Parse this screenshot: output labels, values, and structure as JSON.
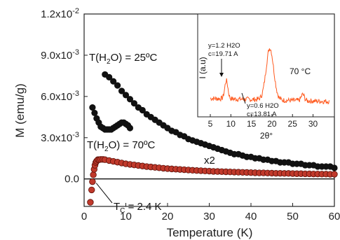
{
  "chart_data": [
    {
      "type": "scatter",
      "xlabel": "Temperature (K)",
      "ylabel": "M (emu/g)",
      "xlim": [
        0,
        60
      ],
      "ylim": [
        -0.002,
        0.012
      ],
      "xticks": [
        "0",
        "10",
        "20",
        "30",
        "40",
        "50",
        "60"
      ],
      "yticks": [
        "0.0",
        "3.0x10-3",
        "6.0x10-3",
        "9.0x10-3",
        "1.2x10-2"
      ],
      "ytick_values": [
        0,
        0.003,
        0.006,
        0.009,
        0.012
      ],
      "xtick_values": [
        0,
        10,
        20,
        30,
        40,
        50,
        60
      ],
      "series": [
        {
          "color": "#111111",
          "marker": "filled-circle",
          "x": [
            5,
            6,
            7,
            8,
            9,
            10,
            11,
            12,
            13,
            14,
            15,
            16,
            17,
            18,
            19,
            20,
            21,
            22,
            23,
            24,
            25,
            26,
            27,
            28,
            29,
            30,
            31,
            32,
            33,
            34,
            35,
            36,
            37,
            38,
            39,
            40,
            41,
            42,
            43,
            44,
            45,
            46,
            47,
            48,
            49,
            50,
            51,
            52,
            53,
            54,
            55,
            56,
            57,
            58,
            59,
            60
          ],
          "y": [
            0.0076,
            0.0074,
            0.0071,
            0.0068,
            0.0064,
            0.0061,
            0.0058,
            0.0055,
            0.0052,
            0.005,
            0.0047,
            0.0045,
            0.0043,
            0.0041,
            0.0039,
            0.0037,
            0.0035,
            0.0034,
            0.0032,
            0.0031,
            0.0029,
            0.0028,
            0.0027,
            0.0026,
            0.0025,
            0.0024,
            0.0023,
            0.0022,
            0.0021,
            0.002,
            0.0019,
            0.0018,
            0.0018,
            0.0017,
            0.0016,
            0.0016,
            0.0015,
            0.0015,
            0.0014,
            0.0014,
            0.0013,
            0.0013,
            0.0012,
            0.0012,
            0.0012,
            0.0011,
            0.0011,
            0.0011,
            0.001,
            0.001,
            0.001,
            0.0009,
            0.0009,
            0.0009,
            0.0009,
            0.0008
          ]
        },
        {
          "color": "#111111",
          "marker": "filled-circle",
          "x": [
            2,
            2.5,
            3,
            3.5,
            4,
            4.5,
            5,
            5.5,
            6,
            6.5,
            7,
            7.5,
            8,
            8.5,
            9,
            9.5,
            10,
            10.5,
            11
          ],
          "y": [
            0.0052,
            0.0048,
            0.0044,
            0.0041,
            0.0038,
            0.0037,
            0.0036,
            0.0036,
            0.0036,
            0.0036,
            0.0037,
            0.0038,
            0.0039,
            0.004,
            0.0041,
            0.0041,
            0.004,
            0.0039,
            0.0037
          ]
        },
        {
          "color": "#c0392b",
          "marker": "filled-circle",
          "x": [
            1.5,
            1.8,
            2,
            2.2,
            2.4,
            2.6,
            2.8,
            3,
            3.3,
            3.6,
            4,
            4.5,
            5,
            6,
            7,
            8,
            9,
            10,
            11,
            12,
            13,
            14,
            15,
            16,
            17,
            18,
            19,
            20,
            21,
            22,
            23,
            24,
            25,
            26,
            27,
            28,
            29,
            30,
            31,
            32,
            33,
            34,
            35,
            36,
            37,
            38,
            39,
            40,
            41,
            42,
            43,
            44,
            45,
            46,
            47,
            48,
            49,
            50,
            51,
            52,
            53,
            54,
            55,
            56,
            57,
            58,
            59,
            60
          ],
          "y": [
            -0.0017,
            -0.0008,
            -0.0002,
            0.0003,
            0.0007,
            0.001,
            0.0012,
            0.0013,
            0.0014,
            0.0014,
            0.00142,
            0.00142,
            0.0014,
            0.00134,
            0.00128,
            0.00122,
            0.00116,
            0.0011,
            0.00106,
            0.00102,
            0.00098,
            0.00094,
            0.0009,
            0.00087,
            0.00084,
            0.00081,
            0.00078,
            0.00075,
            0.00073,
            0.00071,
            0.00069,
            0.00067,
            0.00065,
            0.00063,
            0.00061,
            0.0006,
            0.00058,
            0.00057,
            0.00055,
            0.00054,
            0.00053,
            0.00052,
            0.00051,
            0.0005,
            0.00049,
            0.00048,
            0.00047,
            0.00046,
            0.00045,
            0.00044,
            0.00044,
            0.00043,
            0.00042,
            0.00041,
            0.00041,
            0.0004,
            0.0004,
            0.00039,
            0.00038,
            0.00038,
            0.00037,
            0.00037,
            0.00036,
            0.00036,
            0.00035,
            0.00035,
            0.00034,
            0.00034
          ]
        }
      ],
      "reference_line_y": 0,
      "annotations": [
        {
          "text": "T(H",
          "sub": "2",
          "tail": "O) = 25ºC"
        },
        {
          "text": "T(H",
          "sub": "2",
          "tail": "O) = 70ºC"
        },
        {
          "text": "x2"
        },
        {
          "text": "T",
          "sub": "C",
          "tail": " = 2.4 K",
          "points_to": [
            2.4,
            0
          ]
        }
      ]
    },
    {
      "type": "line",
      "xlabel": "2θ°",
      "ylabel": "I (a.u)",
      "xlim": [
        5,
        34
      ],
      "xticks": [
        "5",
        "10",
        "15",
        "20",
        "25",
        "30"
      ],
      "xtick_values": [
        5,
        10,
        15,
        20,
        25,
        30
      ],
      "color": "#ff5a1f",
      "label": "70 °C",
      "annotations": [
        {
          "line1": "y=1.2 H2O",
          "line2": "c=19.71 A",
          "at_x": 8.9
        },
        {
          "line1": "y=0.6 H2O",
          "line2": "c=13.81 A",
          "at_x": 13.0
        }
      ],
      "peaks": [
        {
          "x": 8.9,
          "height": 0.35
        },
        {
          "x": 19.5,
          "height": 1.0
        },
        {
          "x": 27.5,
          "height": 0.12
        }
      ]
    }
  ]
}
